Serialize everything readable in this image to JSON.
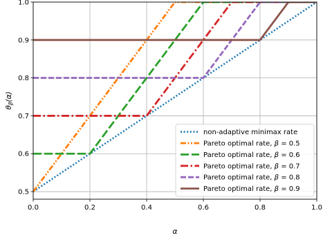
{
  "chart_data": {
    "type": "line",
    "xlabel": "α",
    "ylabel": "θ_β(α)",
    "xlim": [
      0.0,
      1.0
    ],
    "ylim": [
      0.48,
      1.0
    ],
    "xticks": [
      "0.0",
      "0.2",
      "0.4",
      "0.6",
      "0.8",
      "1.0"
    ],
    "yticks": [
      "0.5",
      "0.6",
      "0.7",
      "0.8",
      "0.9",
      "1.0"
    ],
    "grid": true,
    "legend_position": "bottom-right",
    "series": [
      {
        "name": "non-adaptive minimax rate",
        "color": "#1f77b4",
        "dash": "dotted",
        "x": [
          0.0,
          1.0
        ],
        "y": [
          0.5,
          1.0
        ]
      },
      {
        "name": "Pareto optimal rate, β = 0.5",
        "color": "#ff7f0e",
        "dash": "dashdotdot",
        "x": [
          0.0,
          0.5,
          1.0
        ],
        "y": [
          0.5,
          1.0,
          1.0
        ]
      },
      {
        "name": "Pareto optimal rate, β = 0.6",
        "color": "#2ca02c",
        "dash": "longdash",
        "x": [
          0.0,
          0.2,
          0.6,
          1.0
        ],
        "y": [
          0.6,
          0.6,
          1.0,
          1.0
        ]
      },
      {
        "name": "Pareto optimal rate, β = 0.7",
        "color": "#d62728",
        "dash": "dashdot",
        "x": [
          0.0,
          0.4,
          0.7,
          1.0
        ],
        "y": [
          0.7,
          0.7,
          1.0,
          1.0
        ]
      },
      {
        "name": "Pareto optimal rate, β = 0.8",
        "color": "#9467bd",
        "dash": "dashed",
        "x": [
          0.0,
          0.6,
          0.8,
          1.0
        ],
        "y": [
          0.8,
          0.8,
          1.0,
          1.0
        ]
      },
      {
        "name": "Pareto optimal rate, β = 0.9",
        "color": "#8c564b",
        "dash": "solid",
        "x": [
          0.0,
          0.8,
          0.9,
          1.0
        ],
        "y": [
          0.9,
          0.9,
          1.0,
          1.0
        ]
      }
    ]
  }
}
